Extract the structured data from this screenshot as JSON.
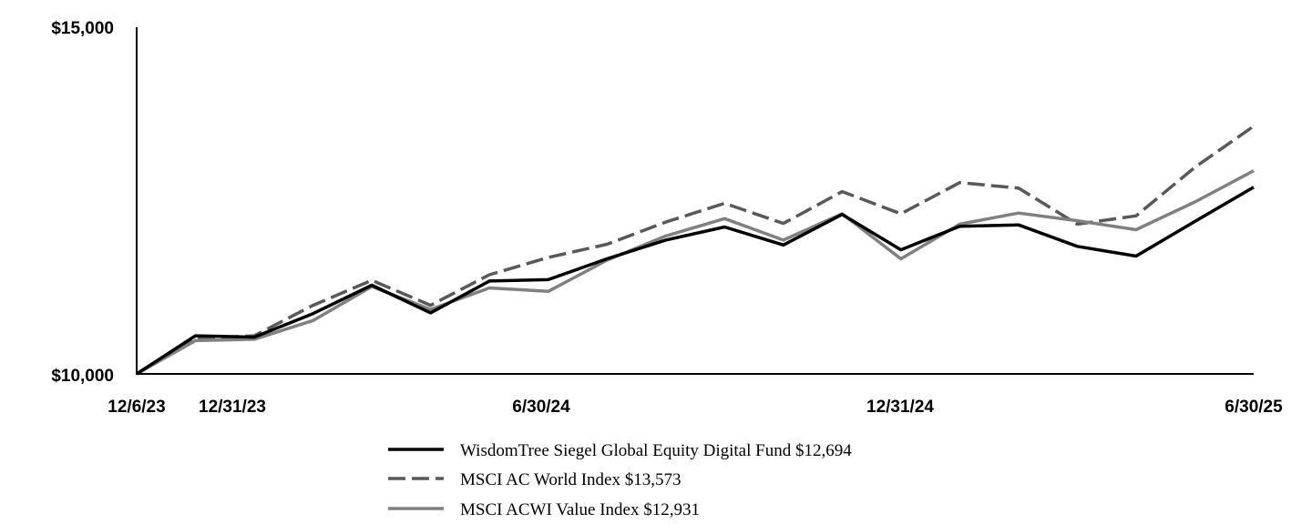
{
  "chart_data": {
    "type": "line",
    "x_dates": [
      "12/6/23",
      "12/31/23",
      "1/31/24",
      "2/29/24",
      "3/31/24",
      "4/30/24",
      "5/31/24",
      "6/30/24",
      "7/31/24",
      "8/31/24",
      "9/30/24",
      "10/31/24",
      "11/30/24",
      "12/31/24",
      "1/31/25",
      "2/28/25",
      "3/31/25",
      "4/30/25",
      "5/31/25",
      "6/30/25"
    ],
    "x_ticks": [
      "12/6/23",
      "12/31/23",
      "6/30/24",
      "12/31/24",
      "6/30/25"
    ],
    "y_ticks": [
      "$15,000",
      "$10,000"
    ],
    "ylim": [
      10000,
      15000
    ],
    "series": [
      {
        "name": "WisdomTree Siegel Global Equity Digital Fund $12,694",
        "style": "solid",
        "color": "#000000",
        "values": [
          10000,
          10550,
          10530,
          10870,
          11280,
          10880,
          11340,
          11360,
          11660,
          11930,
          12120,
          11860,
          12300,
          11790,
          12130,
          12150,
          11840,
          11700,
          12200,
          12694
        ]
      },
      {
        "name": "MSCI AC World Index $13,573",
        "style": "dashed",
        "color": "#595959",
        "values": [
          10000,
          10510,
          10550,
          10990,
          11350,
          10990,
          11430,
          11680,
          11870,
          12190,
          12460,
          12170,
          12630,
          12310,
          12760,
          12680,
          12160,
          12280,
          12980,
          13573
        ]
      },
      {
        "name": "MSCI ACWI Value Index $12,931",
        "style": "solid",
        "color": "#808080",
        "values": [
          10000,
          10480,
          10500,
          10770,
          11260,
          10930,
          11240,
          11190,
          11640,
          11990,
          12240,
          11930,
          12310,
          11660,
          12160,
          12320,
          12210,
          12080,
          12480,
          12931
        ]
      }
    ],
    "grid": false,
    "legend": "bottom"
  }
}
